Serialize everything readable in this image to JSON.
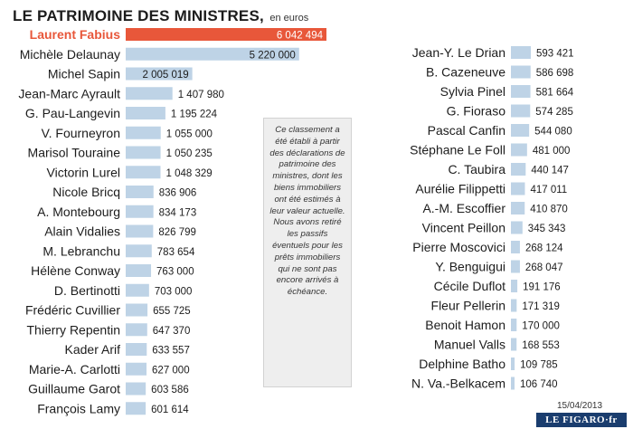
{
  "title": "LE PATRIMOINE DES MINISTRES,",
  "unit": "en euros",
  "note": "Ce classement a été établi à partir des déclarations de patrimoine des ministres, dont les biens immobiliers ont été estimés à leur valeur actuelle. Nous avons retiré les passifs éventuels pour les prêts immobiliers qui ne sont pas encore arrivés à échéance.",
  "date": "15/04/2013",
  "logo": "LE FIGARO·fr",
  "colors": {
    "highlight": "#e8573a",
    "bar": "#bed3e6",
    "text": "#1c1c1c"
  },
  "chart_data": {
    "type": "bar",
    "orientation": "horizontal",
    "title": "LE PATRIMOINE DES MINISTRES,",
    "subtitle": "en euros",
    "grid": false,
    "highlight": "Laurent Fabius",
    "columns": [
      {
        "items": [
          {
            "name": "Laurent Fabius",
            "value": 6042494,
            "label": "6 042 494"
          },
          {
            "name": "Michèle Delaunay",
            "value": 5220000,
            "label": "5 220 000"
          },
          {
            "name": "Michel Sapin",
            "value": 2005019,
            "label": "2 005 019"
          },
          {
            "name": "Jean-Marc Ayrault",
            "value": 1407980,
            "label": "1 407 980"
          },
          {
            "name": "G. Pau-Langevin",
            "value": 1195224,
            "label": "1 195 224"
          },
          {
            "name": "V. Fourneyron",
            "value": 1055000,
            "label": "1 055 000"
          },
          {
            "name": "Marisol Touraine",
            "value": 1050235,
            "label": "1 050 235"
          },
          {
            "name": "Victorin Lurel",
            "value": 1048329,
            "label": "1 048 329"
          },
          {
            "name": "Nicole Bricq",
            "value": 836906,
            "label": "836 906"
          },
          {
            "name": "A. Montebourg",
            "value": 834173,
            "label": "834 173"
          },
          {
            "name": "Alain Vidalies",
            "value": 826799,
            "label": "826 799"
          },
          {
            "name": "M. Lebranchu",
            "value": 783654,
            "label": "783 654"
          },
          {
            "name": "Hélène Conway",
            "value": 763000,
            "label": "763 000"
          },
          {
            "name": "D. Bertinotti",
            "value": 703000,
            "label": "703 000"
          },
          {
            "name": "Frédéric Cuvillier",
            "value": 655725,
            "label": "655 725"
          },
          {
            "name": "Thierry Repentin",
            "value": 647370,
            "label": "647 370"
          },
          {
            "name": "Kader Arif",
            "value": 633557,
            "label": "633 557"
          },
          {
            "name": "Marie-A. Carlotti",
            "value": 627000,
            "label": "627 000"
          },
          {
            "name": "Guillaume Garot",
            "value": 603586,
            "label": "603 586"
          },
          {
            "name": "François Lamy",
            "value": 601614,
            "label": "601 614"
          }
        ]
      },
      {
        "items": [
          {
            "name": "Jean-Y. Le Drian",
            "value": 593421,
            "label": "593 421"
          },
          {
            "name": "B. Cazeneuve",
            "value": 586698,
            "label": "586 698"
          },
          {
            "name": "Sylvia Pinel",
            "value": 581664,
            "label": "581 664"
          },
          {
            "name": "G. Fioraso",
            "value": 574285,
            "label": "574 285"
          },
          {
            "name": "Pascal Canfin",
            "value": 544080,
            "label": "544 080"
          },
          {
            "name": "Stéphane Le Foll",
            "value": 481000,
            "label": "481 000"
          },
          {
            "name": "C. Taubira",
            "value": 440147,
            "label": "440 147"
          },
          {
            "name": "Aurélie Filippetti",
            "value": 417011,
            "label": "417 011"
          },
          {
            "name": "A.-M. Escoffier",
            "value": 410870,
            "label": "410 870"
          },
          {
            "name": "Vincent Peillon",
            "value": 345343,
            "label": "345 343"
          },
          {
            "name": "Pierre Moscovici",
            "value": 268124,
            "label": "268 124"
          },
          {
            "name": "Y. Benguigui",
            "value": 268047,
            "label": "268 047"
          },
          {
            "name": "Cécile Duflot",
            "value": 191176,
            "label": "191 176"
          },
          {
            "name": "Fleur Pellerin",
            "value": 171319,
            "label": "171 319"
          },
          {
            "name": "Benoit Hamon",
            "value": 170000,
            "label": "170 000"
          },
          {
            "name": "Manuel Valls",
            "value": 168553,
            "label": "168 553"
          },
          {
            "name": "Delphine Batho",
            "value": 109785,
            "label": "109 785"
          },
          {
            "name": "N. Va.-Belkacem",
            "value": 106740,
            "label": "106 740"
          }
        ]
      }
    ]
  }
}
